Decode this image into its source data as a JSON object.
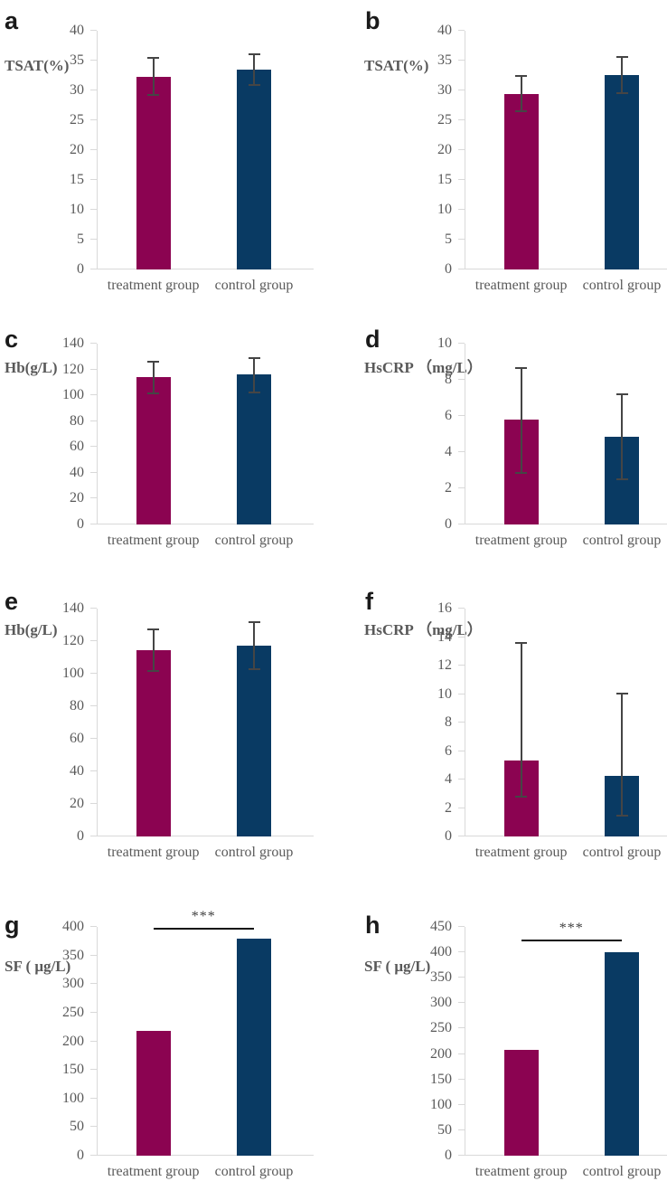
{
  "figure": {
    "description": "Eight-panel bar chart figure comparing treatment group vs control group",
    "colors": {
      "treatment_bar": "#8B0351",
      "control_bar": "#093A63",
      "error_bar": "#454545",
      "axis_line": "#D9D9D9",
      "text": "#595959",
      "significance_line": "#111111",
      "panel_letter": "#1A1A1A"
    }
  },
  "chart_data": {
    "type": "bar",
    "categories": [
      "treatment group",
      "control group"
    ],
    "bar_colors": [
      "#8B0351",
      "#093A63"
    ],
    "legend": "none",
    "grid": false,
    "panels": [
      {
        "label": "a",
        "ylabel": "TSAT(%)",
        "values": [
          32.3,
          33.5
        ],
        "error_bars": [
          [
            29.4,
            35.3
          ],
          [
            31.1,
            35.9
          ]
        ],
        "ylim": [
          0,
          40
        ],
        "yticks": [
          0,
          5,
          10,
          15,
          20,
          25,
          30,
          35,
          40
        ],
        "significance": null
      },
      {
        "label": "b",
        "ylabel": "TSAT(%)",
        "values": [
          29.4,
          32.6
        ],
        "error_bars": [
          [
            26.7,
            32.2
          ],
          [
            29.7,
            35.4
          ]
        ],
        "ylim": [
          0,
          40
        ],
        "yticks": [
          0,
          5,
          10,
          15,
          20,
          25,
          30,
          35,
          40
        ],
        "significance": null
      },
      {
        "label": "c",
        "ylabel": "Hb(g/L)",
        "values": [
          114,
          116.5
        ],
        "error_bars": [
          [
            102,
            125
          ],
          [
            103,
            128
          ]
        ],
        "ylim": [
          0,
          140
        ],
        "yticks": [
          0,
          20,
          40,
          60,
          80,
          100,
          120,
          140
        ],
        "significance": null
      },
      {
        "label": "d",
        "ylabel": "HsCRP （mg/L）",
        "values": [
          5.8,
          4.85
        ],
        "error_bars": [
          [
            2.9,
            8.6
          ],
          [
            2.55,
            7.15
          ]
        ],
        "ylim": [
          0,
          10
        ],
        "yticks": [
          0,
          2,
          4,
          6,
          8,
          10
        ],
        "significance": null
      },
      {
        "label": "e",
        "ylabel": "Hb(g/L)",
        "values": [
          114.5,
          117.5
        ],
        "error_bars": [
          [
            102.5,
            126.5
          ],
          [
            103.5,
            131
          ]
        ],
        "ylim": [
          0,
          140
        ],
        "yticks": [
          0,
          20,
          40,
          60,
          80,
          100,
          120,
          140
        ],
        "significance": null
      },
      {
        "label": "f",
        "ylabel": "HsCRP （mg/L）",
        "values": [
          5.35,
          4.25
        ],
        "error_bars": [
          [
            2.85,
            13.5
          ],
          [
            1.5,
            10
          ]
        ],
        "ylim": [
          0,
          16
        ],
        "yticks": [
          0,
          2,
          4,
          6,
          8,
          10,
          12,
          14,
          16
        ],
        "significance": null
      },
      {
        "label": "g",
        "ylabel": "SF ( μg/L)",
        "values": [
          218,
          380
        ],
        "error_bars": [
          null,
          null
        ],
        "ylim": [
          0,
          400
        ],
        "yticks": [
          0,
          50,
          100,
          150,
          200,
          250,
          300,
          350,
          400
        ],
        "significance": {
          "label": "***",
          "y": 395
        }
      },
      {
        "label": "h",
        "ylabel": "SF ( μg/L)",
        "values": [
          209,
          400
        ],
        "error_bars": [
          null,
          null
        ],
        "ylim": [
          0,
          450
        ],
        "yticks": [
          0,
          50,
          100,
          150,
          200,
          250,
          300,
          350,
          400,
          450
        ],
        "significance": {
          "label": "***",
          "y": 422
        }
      }
    ]
  }
}
